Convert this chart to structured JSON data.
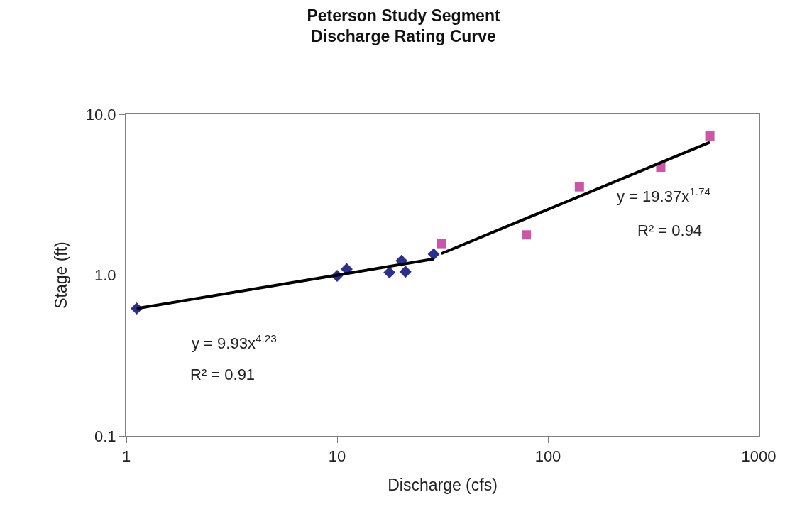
{
  "chart_data": {
    "type": "scatter",
    "title": "Peterson Study Segment\nDischarge Rating Curve",
    "xlabel": "Discharge (cfs)",
    "ylabel": "Stage (ft)",
    "log": "xy",
    "grid": false,
    "xlim": [
      1,
      1000
    ],
    "xticks": [
      1,
      10,
      100,
      1000
    ],
    "ylim": [
      0.1,
      10
    ],
    "yticks": [
      {
        "value": 0.1,
        "label": "0.1"
      },
      {
        "value": 1,
        "label": "1.0"
      },
      {
        "value": 10,
        "label": "10.0"
      }
    ],
    "series": [
      {
        "marker": "diamond",
        "color": "#2b2f8f",
        "x": [
          1.12,
          10.0,
          11.1,
          17.7,
          20.2,
          21.1,
          28.7
        ],
        "values": [
          0.62,
          0.99,
          1.09,
          1.04,
          1.23,
          1.05,
          1.35
        ]
      },
      {
        "marker": "square",
        "color": "#cc55aa",
        "x": [
          31.2,
          79,
          141,
          343,
          586
        ],
        "values": [
          1.57,
          1.78,
          3.54,
          4.69,
          7.33
        ]
      },
      {
        "type": "line",
        "marker": "none",
        "line_style": "solid",
        "color": "#000000",
        "x": [
          1.12,
          28.7
        ],
        "values": [
          0.62,
          1.26
        ]
      },
      {
        "type": "line",
        "marker": "none",
        "line_style": "solid",
        "color": "#000000",
        "x": [
          31.2,
          586
        ],
        "values": [
          1.36,
          6.7
        ]
      }
    ],
    "annotations": [
      "y = 9.93x$^{4.23}$",
      "R² = 0.91",
      "y = 19.37x$^{1.74}$",
      "R² = 0.94"
    ]
  }
}
